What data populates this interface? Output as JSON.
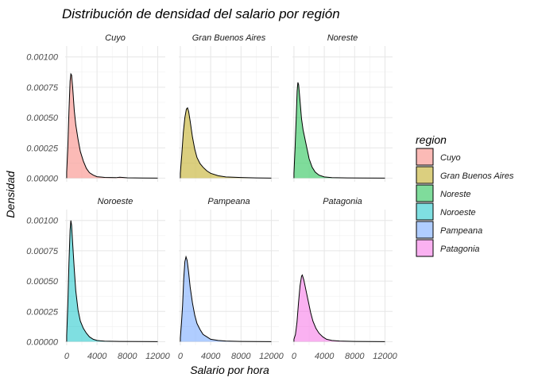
{
  "chart_data": {
    "type": "area",
    "title": "Distribución de densidad del salario por región",
    "xlabel": "Salario por hora",
    "ylabel": "Densidad",
    "xlim": [
      -200,
      13000
    ],
    "ylim": [
      -3e-05,
      0.00109
    ],
    "x_ticks": [
      0,
      4000,
      8000,
      12000
    ],
    "x_tick_labels": [
      "0",
      "4000",
      "8000",
      "12000"
    ],
    "y_ticks": [
      0,
      0.00025,
      0.0005,
      0.00075,
      0.001
    ],
    "y_tick_labels": [
      "0.00000",
      "0.00025",
      "0.00050",
      "0.00075",
      "0.00100"
    ],
    "grid": true,
    "facet_layout": "2 rows x 3 columns",
    "legend": {
      "title": "region",
      "position": "right"
    },
    "series": [
      {
        "name": "Cuyo",
        "color": "#F8766D",
        "points": [
          [
            0,
            5e-05
          ],
          [
            150,
            0.00025
          ],
          [
            300,
            0.00055
          ],
          [
            450,
            0.0008
          ],
          [
            550,
            0.00086
          ],
          [
            650,
            0.00085
          ],
          [
            800,
            0.00074
          ],
          [
            1000,
            0.00056
          ],
          [
            1200,
            0.00044
          ],
          [
            1500,
            0.00032
          ],
          [
            1800,
            0.00022
          ],
          [
            2200,
            0.00014
          ],
          [
            2600,
            8e-05
          ],
          [
            3000,
            4.5e-05
          ],
          [
            3500,
            2.5e-05
          ],
          [
            4000,
            1.2e-05
          ],
          [
            5000,
            6e-06
          ],
          [
            6500,
            4e-06
          ],
          [
            7000,
            8e-06
          ],
          [
            8000,
            3e-06
          ],
          [
            10000,
            1e-06
          ],
          [
            12000,
            0
          ]
        ]
      },
      {
        "name": "Gran Buenos Aires",
        "color": "#B79F00",
        "points": [
          [
            0,
            4e-05
          ],
          [
            200,
            0.0002
          ],
          [
            400,
            0.00038
          ],
          [
            600,
            0.0005
          ],
          [
            800,
            0.00057
          ],
          [
            950,
            0.00058
          ],
          [
            1100,
            0.00055
          ],
          [
            1300,
            0.00047
          ],
          [
            1600,
            0.00034
          ],
          [
            1900,
            0.00024
          ],
          [
            2200,
            0.00017
          ],
          [
            2600,
            0.00012
          ],
          [
            3000,
            9e-05
          ],
          [
            3500,
            6e-05
          ],
          [
            4000,
            4e-05
          ],
          [
            5000,
            2e-05
          ],
          [
            6000,
            1e-05
          ],
          [
            8000,
            5e-06
          ],
          [
            10000,
            2e-06
          ],
          [
            12000,
            0
          ]
        ]
      },
      {
        "name": "Noreste",
        "color": "#00BA38",
        "points": [
          [
            0,
            4e-05
          ],
          [
            150,
            0.00025
          ],
          [
            300,
            0.0005
          ],
          [
            420,
            0.00072
          ],
          [
            520,
            0.00079
          ],
          [
            620,
            0.00077
          ],
          [
            800,
            0.00064
          ],
          [
            1000,
            0.00049
          ],
          [
            1200,
            0.0004
          ],
          [
            1400,
            0.00034
          ],
          [
            1700,
            0.00025
          ],
          [
            2000,
            0.00016
          ],
          [
            2400,
            9e-05
          ],
          [
            2800,
            5e-05
          ],
          [
            3300,
            2.5e-05
          ],
          [
            4000,
            1e-05
          ],
          [
            5000,
            4e-06
          ],
          [
            7000,
            2e-06
          ],
          [
            9000,
            1e-06
          ],
          [
            12000,
            0
          ]
        ]
      },
      {
        "name": "Noroeste",
        "color": "#00BFC4",
        "points": [
          [
            0,
            5e-05
          ],
          [
            150,
            0.0003
          ],
          [
            300,
            0.00065
          ],
          [
            450,
            0.00092
          ],
          [
            550,
            0.001
          ],
          [
            650,
            0.00096
          ],
          [
            800,
            0.0008
          ],
          [
            1000,
            0.0006
          ],
          [
            1200,
            0.00042
          ],
          [
            1500,
            0.00026
          ],
          [
            1800,
            0.00017
          ],
          [
            2200,
            0.00011
          ],
          [
            2600,
            7e-05
          ],
          [
            3000,
            4e-05
          ],
          [
            3500,
            2e-05
          ],
          [
            4000,
            1e-05
          ],
          [
            5000,
            4e-06
          ],
          [
            7000,
            2e-06
          ],
          [
            10000,
            1e-06
          ],
          [
            12000,
            0
          ]
        ]
      },
      {
        "name": "Pampeana",
        "color": "#619CFF",
        "points": [
          [
            0,
            3e-05
          ],
          [
            150,
            0.00015
          ],
          [
            300,
            0.0003
          ],
          [
            450,
            0.00052
          ],
          [
            600,
            0.00066
          ],
          [
            750,
            0.0007
          ],
          [
            900,
            0.00067
          ],
          [
            1100,
            0.00057
          ],
          [
            1300,
            0.00045
          ],
          [
            1600,
            0.00032
          ],
          [
            1900,
            0.00022
          ],
          [
            2200,
            0.00015
          ],
          [
            2600,
            0.0001
          ],
          [
            3000,
            6e-05
          ],
          [
            3500,
            4e-05
          ],
          [
            4000,
            2e-05
          ],
          [
            5000,
            1e-05
          ],
          [
            6000,
            5e-06
          ],
          [
            8000,
            2e-06
          ],
          [
            10000,
            1e-06
          ],
          [
            12000,
            0
          ]
        ]
      },
      {
        "name": "Patagonia",
        "color": "#F564E3",
        "points": [
          [
            0,
            2e-05
          ],
          [
            200,
            6e-05
          ],
          [
            400,
            0.00016
          ],
          [
            600,
            0.00032
          ],
          [
            800,
            0.00046
          ],
          [
            1000,
            0.00054
          ],
          [
            1100,
            0.00055
          ],
          [
            1300,
            0.00051
          ],
          [
            1600,
            0.00042
          ],
          [
            1900,
            0.00033
          ],
          [
            2200,
            0.00024
          ],
          [
            2500,
            0.00017
          ],
          [
            2900,
            0.00011
          ],
          [
            3300,
            7e-05
          ],
          [
            3800,
            4e-05
          ],
          [
            4300,
            2e-05
          ],
          [
            5000,
            1e-05
          ],
          [
            6000,
            5e-06
          ],
          [
            8000,
            2e-06
          ],
          [
            10000,
            1e-06
          ],
          [
            12000,
            0
          ]
        ]
      }
    ]
  }
}
